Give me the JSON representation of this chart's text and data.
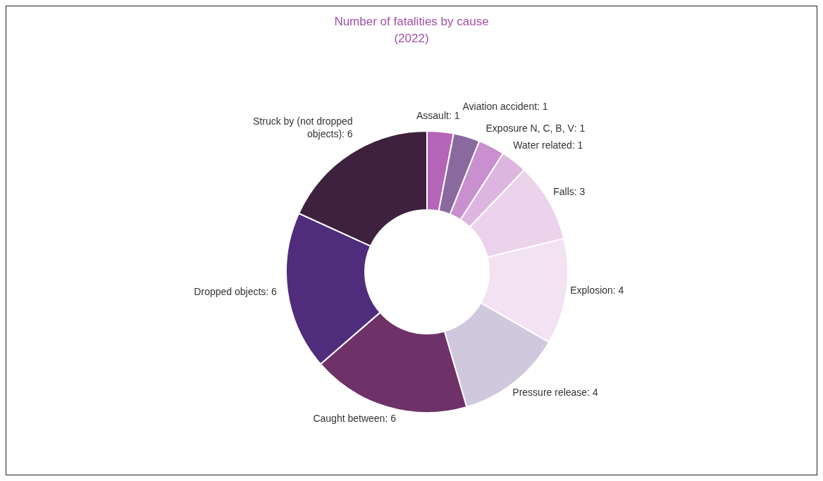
{
  "chart_data": {
    "type": "donut",
    "title": "Number of fatalities by cause\n(2022)",
    "categories": [
      "Assault",
      "Aviation accident",
      "Exposure N, C, B, V",
      "Water related",
      "Falls",
      "Explosion",
      "Pressure release",
      "Caught between",
      "Dropped objects",
      "Struck by (not dropped objects)"
    ],
    "values": [
      1,
      1,
      1,
      1,
      3,
      4,
      4,
      6,
      6,
      6
    ],
    "colors": [
      "#b565b8",
      "#8a6a9e",
      "#c98fcf",
      "#dcb6df",
      "#ead3eb",
      "#f2e2f3",
      "#d0c8dc",
      "#6e3268",
      "#4f2d7c",
      "#3d213d"
    ],
    "value_labels": [
      ": 1",
      ": 1",
      ": 1",
      ": 1",
      ": 3",
      ": 4",
      ": 4",
      ": 6",
      ": 6",
      ": 6"
    ],
    "legend": false
  }
}
